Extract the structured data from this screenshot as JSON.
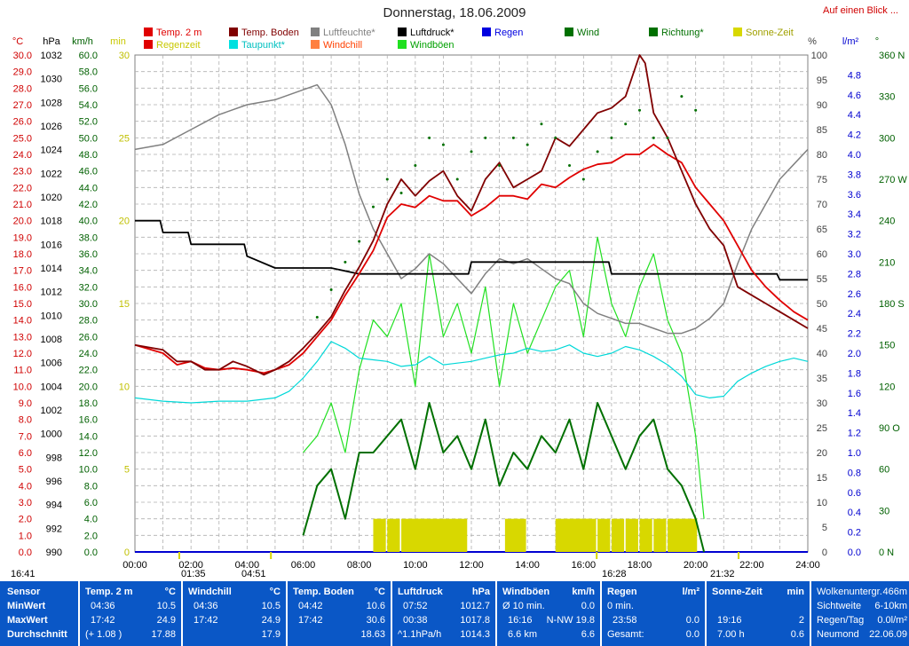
{
  "header": {
    "title": "Donnerstag, 18.06.2009",
    "link": "Auf einen Blick ..."
  },
  "legend": [
    {
      "label": "Temp. 2 m",
      "color": "#e00000",
      "text_color": "#e00000"
    },
    {
      "label": "Temp. Boden",
      "color": "#800000",
      "text_color": "#800000"
    },
    {
      "label": "Luftfeuchte*",
      "color": "#808080",
      "text_color": "#808080"
    },
    {
      "label": "Luftdruck*",
      "color": "#000000",
      "text_color": "#000000"
    },
    {
      "label": "Regen",
      "color": "#0000e0",
      "text_color": "#0000e0"
    },
    {
      "label": "Wind",
      "color": "#007000",
      "text_color": "#007000"
    },
    {
      "label": "Richtung*",
      "color": "#007000",
      "text_color": "#007000"
    },
    {
      "label": "Sonne-Zeit",
      "color": "#d8d800",
      "text_color": "#a0a000"
    },
    {
      "label": "Regenzeit",
      "color": "#e00000",
      "text_color": "#c8c800"
    },
    {
      "label": "Taupunkt*",
      "color": "#00e0e0",
      "text_color": "#00c0c0"
    },
    {
      "label": "Windchill",
      "color": "#ff8040",
      "text_color": "#ff4000"
    },
    {
      "label": "Windböen",
      "color": "#20e020",
      "text_color": "#00a000"
    }
  ],
  "axis_units": {
    "temp": "°C",
    "pressure": "hPa",
    "wind": "km/h",
    "minutes": "min",
    "percent": "%",
    "rain": "l/m²",
    "direction": "°"
  },
  "axes": {
    "temp_ticks": [
      "30.0",
      "29.0",
      "28.0",
      "27.0",
      "26.0",
      "25.0",
      "24.0",
      "23.0",
      "22.0",
      "21.0",
      "20.0",
      "19.0",
      "18.0",
      "17.0",
      "16.0",
      "15.0",
      "14.0",
      "13.0",
      "12.0",
      "11.0",
      "10.0",
      "9.0",
      "8.0",
      "7.0",
      "6.0",
      "5.0",
      "4.0",
      "3.0",
      "2.0",
      "1.0",
      "0.0"
    ],
    "pressure_ticks": [
      "1032",
      "1030",
      "1028",
      "1026",
      "1024",
      "1022",
      "1020",
      "1018",
      "1016",
      "1014",
      "1012",
      "1010",
      "1008",
      "1006",
      "1004",
      "1002",
      "1000",
      "998",
      "996",
      "994",
      "992",
      "990"
    ],
    "wind_ticks": [
      "60.0",
      "58.0",
      "56.0",
      "54.0",
      "52.0",
      "50.0",
      "48.0",
      "46.0",
      "44.0",
      "42.0",
      "40.0",
      "38.0",
      "36.0",
      "34.0",
      "32.0",
      "30.0",
      "28.0",
      "26.0",
      "24.0",
      "22.0",
      "20.0",
      "18.0",
      "16.0",
      "14.0",
      "12.0",
      "10.0",
      "8.0",
      "6.0",
      "4.0",
      "2.0",
      "0.0"
    ],
    "minutes_ticks": [
      "30",
      "25",
      "20",
      "15",
      "10",
      "5",
      "0"
    ],
    "percent_ticks": [
      "100",
      "95",
      "90",
      "85",
      "80",
      "75",
      "70",
      "65",
      "60",
      "55",
      "50",
      "45",
      "40",
      "35",
      "30",
      "25",
      "20",
      "15",
      "10",
      "5",
      "0"
    ],
    "rain_ticks": [
      "4.8",
      "4.6",
      "4.4",
      "4.2",
      "4.0",
      "3.8",
      "3.6",
      "3.4",
      "3.2",
      "3.0",
      "2.8",
      "2.6",
      "2.4",
      "2.2",
      "2.0",
      "1.8",
      "1.6",
      "1.4",
      "1.2",
      "1.0",
      "0.8",
      "0.6",
      "0.4",
      "0.2",
      "0.0"
    ],
    "direction_ticks": [
      "360 N",
      "330",
      "300",
      "270 W",
      "240",
      "210",
      "180 S",
      "150",
      "120",
      "90 O",
      "60",
      "30",
      "0 N"
    ],
    "time_ticks": [
      "00:00",
      "02:00",
      "04:00",
      "06:00",
      "08:00",
      "10:00",
      "12:00",
      "14:00",
      "16:00",
      "18:00",
      "20:00",
      "22:00",
      "24:00"
    ]
  },
  "markers": {
    "sunrise_prev": "16:41",
    "t1": "01:35",
    "t2": "04:51",
    "t3": "16:28",
    "t4": "21:32"
  },
  "chart_data": {
    "type": "line",
    "x_unit": "hour",
    "xlim": [
      0,
      24
    ],
    "series": [
      {
        "name": "Temp. 2 m",
        "unit": "°C",
        "color": "#e00000",
        "x": [
          0,
          1,
          1.5,
          2,
          2.5,
          3,
          3.5,
          4,
          4.6,
          5,
          5.5,
          6,
          6.5,
          7,
          7.5,
          8,
          8.5,
          9,
          9.5,
          10,
          10.5,
          11,
          11.5,
          12,
          12.5,
          13,
          13.5,
          14,
          14.5,
          15,
          15.5,
          16,
          16.5,
          17,
          17.5,
          18,
          18.5,
          19,
          19.5,
          20,
          20.5,
          21,
          21.5,
          22,
          22.5,
          23,
          23.5,
          24
        ],
        "y": [
          12.5,
          12.0,
          11.3,
          11.5,
          11.1,
          11.0,
          11.1,
          11.0,
          10.8,
          11.0,
          11.3,
          12.0,
          13.0,
          14.0,
          15.5,
          16.8,
          18.2,
          20.2,
          21.0,
          20.8,
          21.5,
          21.2,
          21.2,
          20.3,
          20.8,
          21.5,
          21.5,
          21.3,
          22.2,
          22.0,
          22.6,
          23.1,
          23.4,
          23.5,
          24.0,
          24.0,
          24.6,
          24.0,
          23.5,
          22.0,
          21.0,
          20.0,
          18.5,
          17.0,
          16.0,
          15.2,
          14.5,
          14.0
        ]
      },
      {
        "name": "Temp. Boden",
        "unit": "°C",
        "color": "#800000",
        "x": [
          0,
          1,
          1.5,
          2,
          2.5,
          3,
          3.5,
          4,
          4.6,
          5,
          5.5,
          6,
          6.5,
          7,
          7.5,
          8,
          8.5,
          9,
          9.5,
          10,
          10.5,
          11,
          11.5,
          12,
          12.5,
          13,
          13.5,
          14,
          14.5,
          15,
          15.5,
          16,
          16.5,
          17,
          17.5,
          18,
          18.2,
          18.5,
          19,
          19.5,
          20,
          20.5,
          21,
          21.5,
          22,
          22.5,
          23,
          23.5,
          24
        ],
        "y": [
          12.5,
          12.2,
          11.5,
          11.5,
          11.0,
          11.0,
          11.5,
          11.2,
          10.7,
          11.0,
          11.5,
          12.3,
          13.2,
          14.2,
          15.8,
          17.2,
          18.8,
          21.0,
          22.5,
          21.5,
          22.4,
          23.0,
          21.5,
          20.6,
          22.5,
          23.5,
          22.0,
          22.5,
          23.0,
          25.0,
          24.5,
          25.5,
          26.5,
          26.8,
          27.5,
          30.0,
          29.5,
          26.5,
          25.0,
          23.0,
          21.0,
          19.5,
          18.5,
          16.0,
          15.5,
          15.0,
          14.5,
          14.0,
          13.5
        ]
      },
      {
        "name": "Luftfeuchte*",
        "unit": "%",
        "color": "#808080",
        "x": [
          0,
          1,
          2,
          3,
          4,
          5,
          5.5,
          6,
          6.5,
          7,
          7.5,
          8,
          8.5,
          9,
          9.5,
          10,
          10.5,
          11,
          11.5,
          12,
          12.5,
          13,
          13.5,
          14,
          14.5,
          15,
          15.5,
          16,
          16.5,
          17,
          17.5,
          18,
          18.5,
          19,
          19.5,
          20,
          20.5,
          21,
          21.5,
          22,
          22.5,
          23,
          23.5,
          24
        ],
        "y": [
          81,
          82,
          85,
          88,
          90,
          91,
          92,
          93,
          94,
          90,
          82,
          72,
          65,
          60,
          55,
          57,
          60,
          58,
          55,
          52,
          56,
          59,
          58,
          59,
          57,
          55,
          54,
          50,
          48,
          47,
          46,
          46,
          45,
          44,
          44,
          45,
          47,
          50,
          58,
          65,
          70,
          75,
          78,
          81
        ]
      },
      {
        "name": "Luftdruck*",
        "unit": "hPa",
        "color": "#000000",
        "x": [
          0,
          0.9,
          1,
          1.9,
          2,
          3.9,
          4,
          5,
          7,
          8,
          8.9,
          9,
          10,
          11.9,
          12,
          13,
          15,
          16.9,
          17,
          20,
          21,
          22,
          22.9,
          23,
          24
        ],
        "y": [
          1018,
          1018,
          1017,
          1017,
          1016,
          1016,
          1015,
          1014,
          1014,
          1013.5,
          1013.5,
          1013.5,
          1013.5,
          1013.5,
          1014.5,
          1014.5,
          1014.5,
          1014.5,
          1013.5,
          1013.5,
          1013.5,
          1013.5,
          1013.5,
          1013,
          1013
        ]
      },
      {
        "name": "Taupunkt*",
        "unit": "°C",
        "color": "#00d8d8",
        "x": [
          0,
          1,
          2,
          3,
          4,
          5,
          5.5,
          6,
          6.5,
          7,
          7.5,
          8,
          8.5,
          9,
          9.5,
          10,
          10.5,
          11,
          11.5,
          12,
          12.5,
          13,
          13.5,
          14,
          14.5,
          15,
          15.5,
          16,
          16.5,
          17,
          17.5,
          18,
          18.5,
          19,
          19.5,
          20,
          20.5,
          21,
          21.5,
          22,
          22.5,
          23,
          23.5,
          24
        ],
        "y": [
          9.3,
          9.1,
          9.0,
          9.1,
          9.1,
          9.3,
          9.7,
          10.5,
          11.5,
          12.7,
          12.3,
          11.7,
          11.6,
          11.5,
          11.2,
          11.3,
          11.8,
          11.3,
          11.4,
          11.5,
          11.7,
          11.9,
          12.0,
          12.3,
          12.1,
          12.2,
          12.5,
          12.0,
          11.8,
          12.0,
          12.4,
          12.2,
          11.8,
          11.3,
          10.6,
          9.5,
          9.3,
          9.4,
          10.3,
          10.8,
          11.2,
          11.5,
          11.7,
          11.5
        ]
      },
      {
        "name": "Windböen",
        "unit": "km/h",
        "color": "#20e020",
        "x": [
          6.0,
          6.5,
          7.0,
          7.5,
          8.0,
          8.5,
          9.0,
          9.5,
          10.0,
          10.5,
          11.0,
          11.5,
          12.0,
          12.5,
          13.0,
          13.5,
          14.0,
          14.5,
          15.0,
          15.5,
          16.0,
          16.5,
          17.0,
          17.5,
          18.0,
          18.5,
          19.0,
          19.5,
          20.0,
          20.3
        ],
        "y": [
          12,
          14,
          18,
          12,
          22,
          28,
          26,
          30,
          20,
          36,
          26,
          30,
          24,
          32,
          20,
          30,
          24,
          28,
          32,
          34,
          26,
          38,
          30,
          26,
          32,
          36,
          28,
          24,
          14,
          4
        ]
      },
      {
        "name": "Wind",
        "unit": "km/h",
        "color": "#007000",
        "x": [
          6.0,
          6.5,
          7.0,
          7.5,
          8.0,
          8.5,
          9.0,
          9.5,
          10.0,
          10.5,
          11.0,
          11.5,
          12.0,
          12.5,
          13.0,
          13.5,
          14.0,
          14.5,
          15.0,
          15.5,
          16.0,
          16.5,
          17.0,
          17.5,
          18.0,
          18.5,
          19.0,
          19.5,
          20.0,
          20.3
        ],
        "y": [
          2,
          8,
          10,
          4,
          12,
          12,
          14,
          16,
          10,
          18,
          12,
          14,
          10,
          16,
          8,
          12,
          10,
          14,
          12,
          16,
          10,
          18,
          14,
          10,
          14,
          16,
          10,
          8,
          4,
          0
        ]
      },
      {
        "name": "Richtung*",
        "unit": "°",
        "color": "#007000",
        "style": "dots",
        "x": [
          6.5,
          7.0,
          7.5,
          8.0,
          8.5,
          9.0,
          9.5,
          10.0,
          10.5,
          11.0,
          11.5,
          12.0,
          12.5,
          13.0,
          13.5,
          14.0,
          14.5,
          15.0,
          15.5,
          16.0,
          16.5,
          17.0,
          17.5,
          18.0,
          18.5,
          19.0,
          19.5,
          20.0
        ],
        "y": [
          170,
          190,
          210,
          225,
          250,
          270,
          260,
          280,
          300,
          295,
          270,
          290,
          300,
          280,
          300,
          295,
          310,
          300,
          280,
          270,
          290,
          300,
          310,
          320,
          300,
          300,
          330,
          320
        ]
      },
      {
        "name": "Sonne-Zeit",
        "unit": "min",
        "color": "#d8d800",
        "style": "bars",
        "x": [
          8.5,
          9.0,
          9.5,
          9.8,
          10.0,
          10.3,
          10.6,
          11.0,
          11.4,
          13.2,
          13.5,
          15.0,
          15.3,
          15.5,
          15.8,
          16.0,
          16.5,
          17.0,
          17.5,
          18.0,
          18.5,
          19.0,
          19.3,
          19.6
        ],
        "y": [
          2,
          2,
          2,
          2,
          2,
          2,
          2,
          2,
          2,
          2,
          2,
          2,
          2,
          2,
          2,
          2,
          2,
          2,
          2,
          2,
          2,
          2,
          2,
          2
        ]
      }
    ]
  },
  "stats": {
    "rows": [
      "Sensor",
      "MinWert",
      "MaxWert",
      "Durchschnitt"
    ],
    "temp2m": {
      "title": "Temp. 2 m",
      "unit": "°C",
      "min_time": "04:36",
      "min_val": "10.5",
      "max_time": "17:42",
      "max_val": "24.9",
      "avg_note": "(+ 1.08 )",
      "avg_val": "17.88"
    },
    "windchill": {
      "title": "Windchill",
      "unit": "°C",
      "min_time": "04:36",
      "min_val": "10.5",
      "max_time": "17:42",
      "max_val": "24.9",
      "avg_val": "17.9"
    },
    "tempboden": {
      "title": "Temp. Boden",
      "unit": "°C",
      "min_time": "04:42",
      "min_val": "10.6",
      "max_time": "17:42",
      "max_val": "30.6",
      "avg_val": "18.63"
    },
    "luftdruck": {
      "title": "Luftdruck",
      "unit": "hPa",
      "min_time": "07:52",
      "min_val": "1012.7",
      "max_time": "00:38",
      "max_val": "1017.8",
      "avg_note": "^1.1hPa/h",
      "avg_val": "1014.3"
    },
    "windboen": {
      "title": "Windböen",
      "unit": "km/h",
      "r1a": "Ø 10 min.",
      "r1b": "0.0",
      "r2a": "16:16",
      "r2b": "N-NW 19.8",
      "r3a": "6.6 km",
      "r3b": "6.6"
    },
    "regen": {
      "title": "Regen",
      "unit": "l/m²",
      "r1a": "0 min.",
      "r1b": "",
      "r2a": "23:58",
      "r2b": "0.0",
      "r3a": "Gesamt:",
      "r3b": "0.0"
    },
    "sonne": {
      "title": "Sonne-Zeit",
      "unit": "min",
      "r2a": "19:16",
      "r2b": "2",
      "r3a": "7.00 h",
      "r3b": "0.6"
    },
    "extra": {
      "r0a": "Wolkenuntergr.",
      "r0b": "466m",
      "r1a": "Sichtweite",
      "r1b": "6-10km",
      "r2a": "Regen/Tag",
      "r2b": "0.0l/m²",
      "r3a": "Neumond",
      "r3b": "22.06.09"
    }
  }
}
